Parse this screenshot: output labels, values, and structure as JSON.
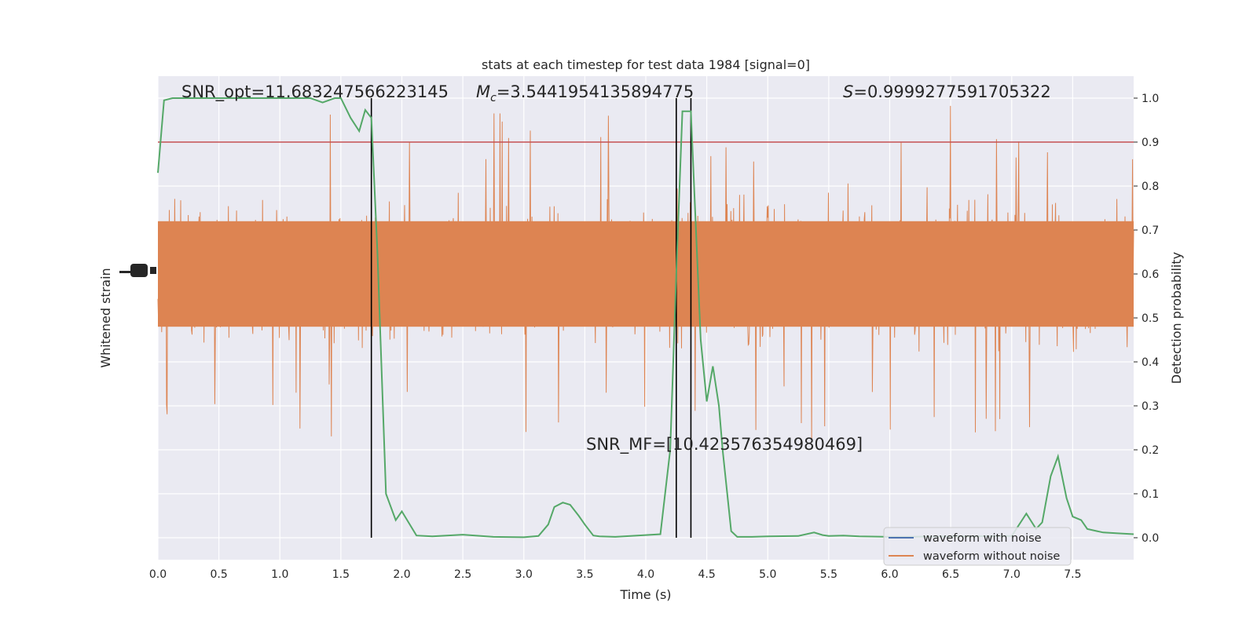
{
  "chart_data": {
    "type": "line",
    "title": "stats at each timestep for test data 1984 [signal=0]",
    "xlabel": "Time (s)",
    "ylabel_left": "Whitened strain",
    "ylabel_right": "Detection probability",
    "xlim": [
      0.0,
      8.0
    ],
    "ylim_right": [
      -0.05,
      1.05
    ],
    "x_ticks": [
      "0.0",
      "0.5",
      "1.0",
      "1.5",
      "2.0",
      "2.5",
      "3.0",
      "3.5",
      "4.0",
      "4.5",
      "5.0",
      "5.5",
      "6.0",
      "6.5",
      "7.0",
      "7.5"
    ],
    "y_ticks_right": [
      "0.0",
      "0.1",
      "0.2",
      "0.3",
      "0.4",
      "0.5",
      "0.6",
      "0.7",
      "0.8",
      "0.9",
      "1.0"
    ],
    "grid": true,
    "annotations": {
      "snr_opt": "SNR_opt=11.683247566223145",
      "mc_symbol": "M",
      "mc_subscript": "c",
      "mc_value": "=3.5441954135894775",
      "s_symbol": "S",
      "s_value": "=0.9999277591705322",
      "snr_mf": "SNR_MF=[10.423576354980469]"
    },
    "threshold": 0.9,
    "vertical_lines": [
      1.75,
      4.25,
      4.37
    ],
    "legend": {
      "position": "lower-right",
      "entries": [
        {
          "label": "waveform with noise",
          "color": "#4c72b0"
        },
        {
          "label": "waveform without noise",
          "color": "#dd8452"
        }
      ]
    },
    "series": [
      {
        "name": "waveform without noise",
        "kind": "noise-band",
        "color": "#dd8452",
        "center": 0.6,
        "band": [
          0.48,
          0.72
        ],
        "max": 1.0,
        "min": 0.0
      },
      {
        "kind": "detection-probability",
        "color": "#55a868",
        "x": [
          0.0,
          0.05,
          0.12,
          0.25,
          0.5,
          0.75,
          1.0,
          1.25,
          1.35,
          1.45,
          1.5,
          1.58,
          1.65,
          1.7,
          1.75,
          1.8,
          1.87,
          1.95,
          2.0,
          2.12,
          2.25,
          2.5,
          2.75,
          3.0,
          3.12,
          3.2,
          3.25,
          3.32,
          3.38,
          3.45,
          3.5,
          3.57,
          3.62,
          3.75,
          4.0,
          4.12,
          4.2,
          4.25,
          4.3,
          4.37,
          4.45,
          4.5,
          4.55,
          4.6,
          4.63,
          4.7,
          4.75,
          4.87,
          5.0,
          5.25,
          5.38,
          5.45,
          5.5,
          5.62,
          5.75,
          6.0,
          6.5,
          7.0,
          7.12,
          7.2,
          7.25,
          7.32,
          7.38,
          7.45,
          7.5,
          7.57,
          7.62,
          7.7,
          7.75,
          7.87,
          8.0
        ],
        "y": [
          0.83,
          0.995,
          1.0,
          1.0,
          1.0,
          1.0,
          1.0,
          1.0,
          0.99,
          1.0,
          1.0,
          0.955,
          0.925,
          0.973,
          0.955,
          0.65,
          0.1,
          0.04,
          0.06,
          0.005,
          0.003,
          0.007,
          0.002,
          0.001,
          0.004,
          0.03,
          0.07,
          0.08,
          0.075,
          0.05,
          0.03,
          0.005,
          0.003,
          0.002,
          0.006,
          0.008,
          0.2,
          0.6,
          0.97,
          0.97,
          0.45,
          0.31,
          0.39,
          0.3,
          0.2,
          0.015,
          0.002,
          0.002,
          0.003,
          0.004,
          0.012,
          0.006,
          0.004,
          0.005,
          0.003,
          0.002,
          0.003,
          0.004,
          0.055,
          0.02,
          0.035,
          0.14,
          0.185,
          0.09,
          0.048,
          0.04,
          0.02,
          0.015,
          0.012,
          0.01,
          0.008
        ]
      }
    ]
  }
}
